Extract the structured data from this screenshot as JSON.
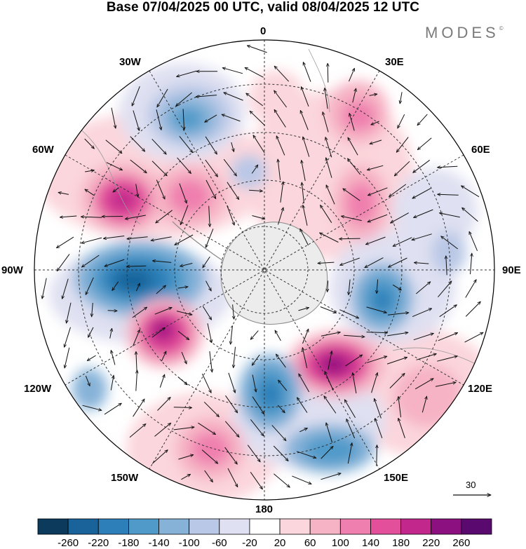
{
  "title": "Base 07/04/2025 00 UTC, valid 08/04/2025 12 UTC",
  "brand": "MODES",
  "brand_mark": "©",
  "longitude_labels": {
    "lon_0": "0",
    "lon_30e": "30E",
    "lon_60e": "60E",
    "lon_90e": "90E",
    "lon_120e": "120E",
    "lon_150e": "150E",
    "lon_180": "180",
    "lon_150w": "150W",
    "lon_120w": "120W",
    "lon_90w": "90W",
    "lon_60w": "60W",
    "lon_30w": "30W"
  },
  "reference_vector": {
    "value": "30"
  },
  "colorbar": {
    "ticks": [
      "-260",
      "-220",
      "-180",
      "-140",
      "-100",
      "-60",
      "-20",
      "20",
      "60",
      "100",
      "140",
      "180",
      "220",
      "260"
    ],
    "colors": [
      "#0b3a5c",
      "#19639a",
      "#2c7fb8",
      "#4f9ac9",
      "#86b2d8",
      "#b9c8e6",
      "#dfe0f1",
      "#ffffff",
      "#fbd6dc",
      "#f6b3c5",
      "#ef7fae",
      "#e34f9b",
      "#c2288b",
      "#8c1080",
      "#5a0a6e"
    ]
  },
  "projection": "south-polar-stereographic",
  "map_features": {
    "continent": "Antarctica",
    "graticule": "dashed"
  }
}
